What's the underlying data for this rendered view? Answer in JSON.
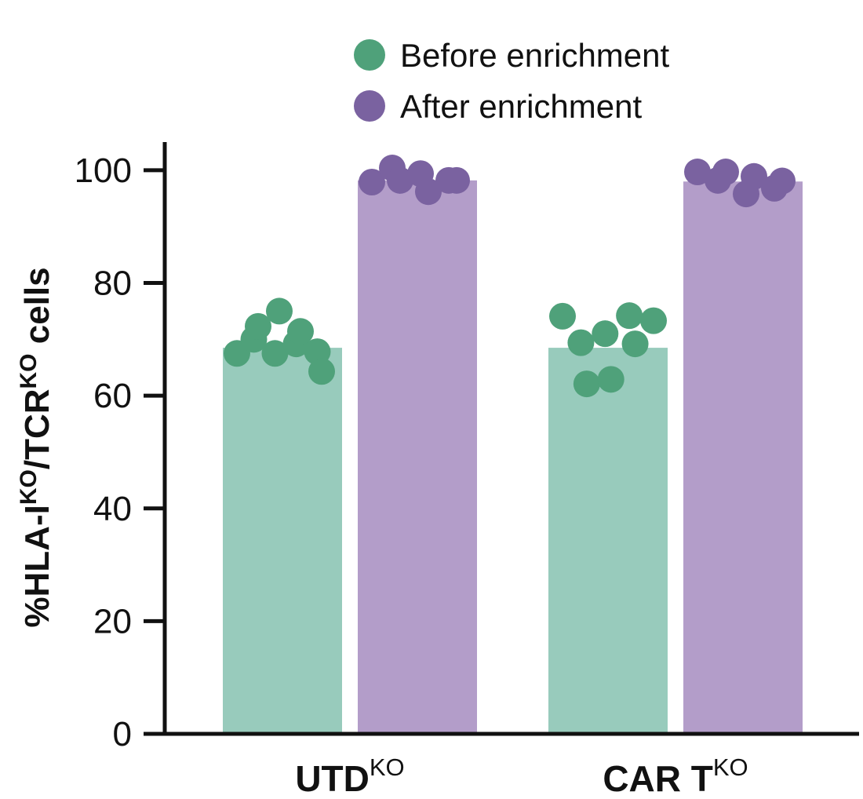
{
  "chart_data": {
    "type": "bar",
    "categories": [
      "UTD",
      "CAR T"
    ],
    "category_superscripts": [
      "KO",
      "KO"
    ],
    "ylabel": [
      {
        "text": "%HLA-I"
      },
      {
        "text": "KO",
        "sup": true
      },
      {
        "text": "/TCR"
      },
      {
        "text": "KO",
        "sup": true
      },
      {
        "text": " cells"
      }
    ],
    "ylim": [
      0,
      105
    ],
    "yticks": [
      0,
      20,
      40,
      60,
      80,
      100
    ],
    "legend": "top",
    "series": [
      {
        "name": "Before enrichment",
        "color": "#4fa17a",
        "bar_color": "#98cbbc",
        "values": [
          68.5,
          68.5
        ],
        "points": [
          [
            67.5,
            70,
            72.3,
            67.5,
            75,
            69.2,
            71.4,
            67.8,
            64.3
          ],
          [
            74.1,
            69.4,
            62.1,
            71,
            62.9,
            74.2,
            69.2,
            73.3
          ]
        ]
      },
      {
        "name": "After enrichment",
        "color": "#7a62a0",
        "bar_color": "#b39dc9",
        "values": [
          98.2,
          98
        ],
        "points": [
          [
            97.9,
            100.4,
            98.2,
            99.4,
            96.2,
            98.2,
            98.2
          ],
          [
            99.7,
            98.2,
            99.7,
            95.8,
            98.9,
            96.8,
            98.1
          ]
        ]
      }
    ]
  }
}
